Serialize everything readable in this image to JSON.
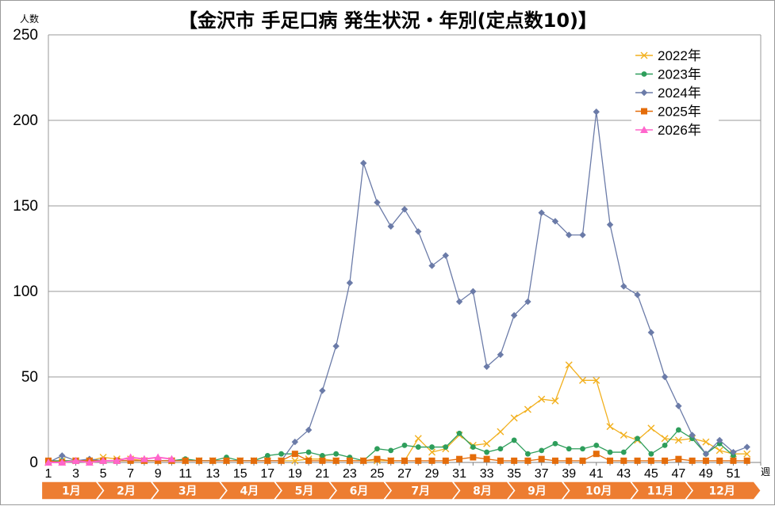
{
  "chart_data": {
    "type": "line",
    "title": "【金沢市 手足口病 発生状況・年別(定点数10)】",
    "ylabel": "人数",
    "xlabel": "週",
    "ylim": [
      0,
      250
    ],
    "yticks": [
      0,
      50,
      100,
      150,
      200,
      250
    ],
    "xlim": [
      1,
      53
    ],
    "xticks": [
      1,
      3,
      5,
      7,
      9,
      11,
      13,
      15,
      17,
      19,
      21,
      23,
      25,
      27,
      29,
      31,
      33,
      35,
      37,
      39,
      41,
      43,
      45,
      47,
      49,
      51
    ],
    "grid": true,
    "legend": "top-right",
    "months": [
      {
        "label": "1月",
        "start": 0.5,
        "end": 4.5
      },
      {
        "label": "2月",
        "start": 4.5,
        "end": 8.5
      },
      {
        "label": "3月",
        "start": 8.5,
        "end": 13.5
      },
      {
        "label": "4月",
        "start": 13.5,
        "end": 17.5
      },
      {
        "label": "5月",
        "start": 17.5,
        "end": 21.5
      },
      {
        "label": "6月",
        "start": 21.5,
        "end": 25.5
      },
      {
        "label": "7月",
        "start": 25.5,
        "end": 30.5
      },
      {
        "label": "8月",
        "start": 30.5,
        "end": 34.5
      },
      {
        "label": "9月",
        "start": 34.5,
        "end": 38.5
      },
      {
        "label": "10月",
        "start": 38.5,
        "end": 43.5
      },
      {
        "label": "11月",
        "start": 43.5,
        "end": 47.5
      },
      {
        "label": "12月",
        "start": 47.5,
        "end": 52.5
      }
    ],
    "series": [
      {
        "name": "2022年",
        "color": "#f2b01e",
        "marker": "x",
        "values": [
          0,
          1,
          1,
          1,
          3,
          2,
          2,
          1,
          1,
          1,
          1,
          1,
          1,
          1,
          1,
          1,
          1,
          1,
          1,
          2,
          2,
          1,
          1,
          1,
          1,
          1,
          1,
          14,
          6,
          8,
          16,
          10,
          11,
          18,
          26,
          31,
          37,
          36,
          57,
          48,
          48,
          21,
          16,
          13,
          20,
          14,
          13,
          14,
          12,
          7,
          5,
          5
        ]
      },
      {
        "name": "2023年",
        "color": "#2e9e5b",
        "marker": "circle",
        "values": [
          1,
          1,
          1,
          1,
          1,
          1,
          1,
          1,
          1,
          1,
          2,
          1,
          1,
          3,
          1,
          1,
          4,
          5,
          5,
          6,
          4,
          5,
          3,
          1,
          8,
          7,
          10,
          9,
          9,
          9,
          17,
          9,
          6,
          8,
          13,
          5,
          7,
          11,
          8,
          8,
          10,
          6,
          6,
          14,
          5,
          10,
          19,
          14,
          5,
          11,
          4
        ]
      },
      {
        "name": "2024年",
        "color": "#6b7ba8",
        "marker": "diamond",
        "values": [
          0,
          4,
          1,
          2,
          1,
          1,
          1,
          1,
          1,
          1,
          1,
          1,
          1,
          1,
          1,
          1,
          1,
          1,
          12,
          19,
          42,
          68,
          105,
          175,
          152,
          138,
          148,
          135,
          115,
          121,
          94,
          100,
          56,
          63,
          86,
          94,
          146,
          141,
          133,
          133,
          205,
          139,
          103,
          98,
          76,
          50,
          33,
          16,
          5,
          13,
          6,
          9
        ]
      },
      {
        "name": "2025年",
        "color": "#e46c0a",
        "marker": "square",
        "values": [
          1,
          0,
          1,
          1,
          1,
          1,
          1,
          1,
          1,
          1,
          1,
          1,
          1,
          1,
          1,
          1,
          1,
          1,
          5,
          1,
          1,
          1,
          1,
          1,
          2,
          1,
          1,
          1,
          1,
          1,
          2,
          3,
          2,
          1,
          1,
          1,
          2,
          1,
          1,
          1,
          5,
          1,
          1,
          1,
          1,
          1,
          2,
          1,
          1,
          1,
          1,
          1
        ]
      },
      {
        "name": "2026年",
        "color": "#ff66cc",
        "marker": "triangle",
        "values": [
          0,
          0,
          1,
          0,
          1,
          1,
          3,
          2,
          3,
          2
        ]
      }
    ]
  }
}
